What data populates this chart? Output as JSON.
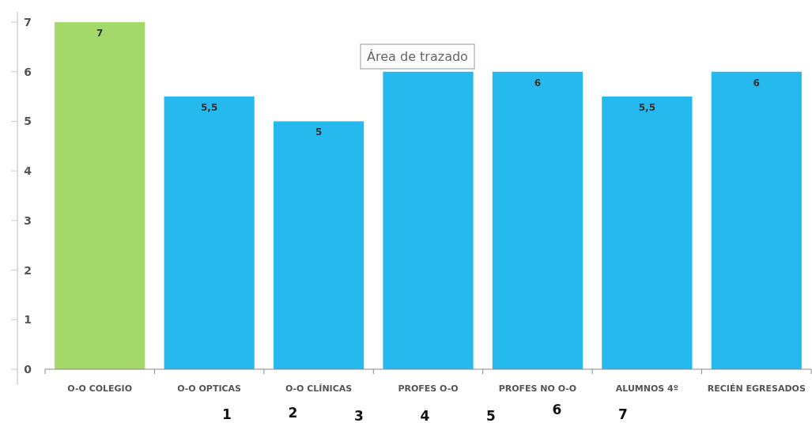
{
  "chart_data": {
    "type": "bar",
    "categories": [
      "O-O COLEGIO",
      "O-O OPTICAS",
      "O-O CLÍNICAS",
      "PROFES O-O",
      "PROFES NO O-O",
      "ALUMNOS 4º",
      "RECIÉN EGRESADOS"
    ],
    "values": [
      7,
      5.5,
      5,
      6,
      6,
      5.5,
      6
    ],
    "colors": [
      "#a5d86a",
      "#26b9ee",
      "#26b9ee",
      "#26b9ee",
      "#26b9ee",
      "#26b9ee",
      "#26b9ee"
    ],
    "value_labels": [
      "7",
      "5,5",
      "5",
      null,
      "6",
      "5,5",
      "6"
    ],
    "ylim": [
      0,
      7
    ],
    "yticks": [
      0,
      1,
      2,
      3,
      4,
      5,
      6,
      7
    ],
    "grid": false,
    "annotations": [
      "Área de trazado",
      "1",
      "2",
      "3",
      "4",
      "5",
      "6",
      "7"
    ]
  }
}
